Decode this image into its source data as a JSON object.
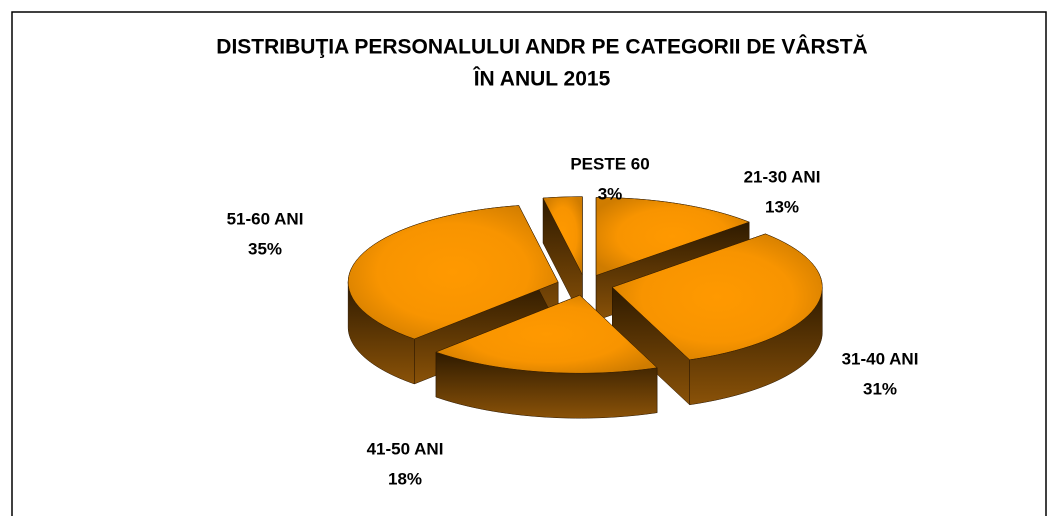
{
  "chart_data": {
    "type": "pie3d",
    "title": [
      "DISTRIBUŢIA PERSONALULUI ANDR PE CATEGORII DE VÂRSTĂ",
      "ÎN ANUL 2015"
    ],
    "categories": [
      "21-30 ANI",
      "31-40 ANI",
      "41-50 ANI",
      "51-60 ANI",
      "PESTE 60"
    ],
    "values": [
      13,
      31,
      18,
      35,
      3
    ],
    "value_labels": [
      "13%",
      "31%",
      "18%",
      "35%",
      "3%"
    ],
    "color": "#ff9900"
  }
}
